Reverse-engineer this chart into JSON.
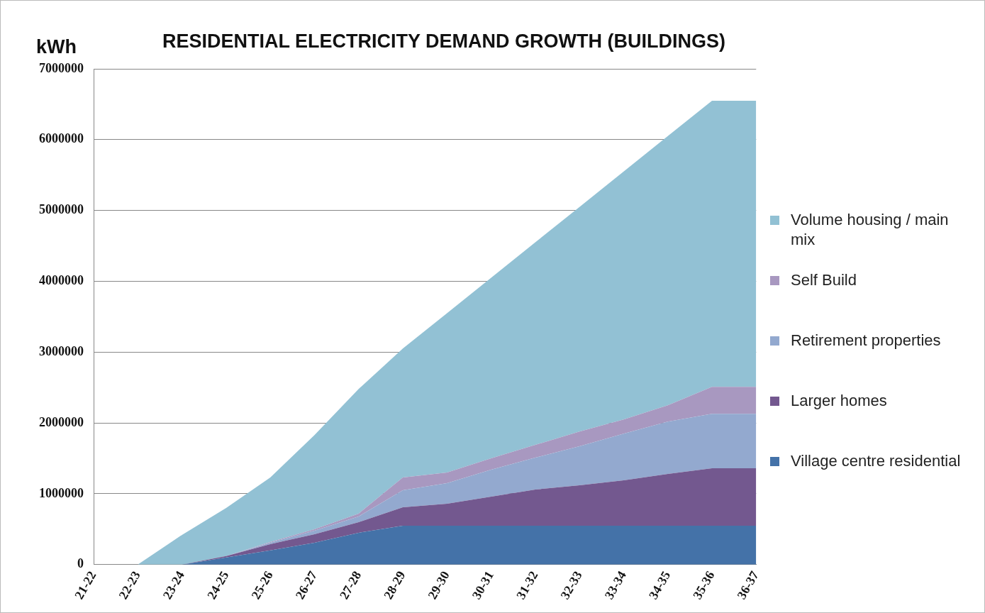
{
  "chart_data": {
    "type": "area",
    "title": "RESIDENTIAL ELECTRICITY DEMAND GROWTH (BUILDINGS)",
    "ylabel": "kWh",
    "stacked": true,
    "categories": [
      "21-22",
      "22-23",
      "23-24",
      "24-25",
      "25-26",
      "26-27",
      "27-28",
      "28-29",
      "29-30",
      "30-31",
      "31-32",
      "32-33",
      "33-34",
      "34-35",
      "35-36",
      "36-37"
    ],
    "series": [
      {
        "name": "Village centre residential",
        "color": "#4472a8",
        "values": [
          0,
          0,
          0,
          100000,
          200000,
          310000,
          450000,
          550000,
          550000,
          550000,
          550000,
          550000,
          550000,
          550000,
          550000,
          550000
        ]
      },
      {
        "name": "Larger homes",
        "color": "#73588f",
        "values": [
          0,
          0,
          0,
          20000,
          90000,
          120000,
          150000,
          260000,
          310000,
          410000,
          510000,
          570000,
          640000,
          730000,
          810000,
          810000
        ]
      },
      {
        "name": "Retirement properties",
        "color": "#93a9cf",
        "values": [
          0,
          0,
          0,
          0,
          20000,
          50000,
          80000,
          240000,
          290000,
          380000,
          450000,
          550000,
          660000,
          740000,
          770000,
          770000
        ]
      },
      {
        "name": "Self Build",
        "color": "#a898c0",
        "values": [
          0,
          0,
          0,
          0,
          10000,
          20000,
          40000,
          180000,
          150000,
          160000,
          180000,
          210000,
          200000,
          230000,
          380000,
          380000
        ]
      },
      {
        "name": "Volume housing / main mix",
        "color": "#92c1d4",
        "values": [
          0,
          0,
          420000,
          680000,
          910000,
          1330000,
          1760000,
          1820000,
          2250000,
          2550000,
          2860000,
          3170000,
          3500000,
          3800000,
          4040000,
          4040000
        ]
      }
    ],
    "ylim": [
      0,
      7000000
    ],
    "yticks": [
      0,
      1000000,
      2000000,
      3000000,
      4000000,
      5000000,
      6000000,
      7000000
    ],
    "grid": "y",
    "legend": "right",
    "marker": "none"
  }
}
